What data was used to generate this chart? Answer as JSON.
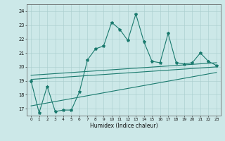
{
  "xlabel": "Humidex (Indice chaleur)",
  "background_color": "#cce8e8",
  "line_color": "#1a7a6e",
  "xlim": [
    -0.5,
    23.5
  ],
  "ylim": [
    16.5,
    24.5
  ],
  "yticks": [
    17,
    18,
    19,
    20,
    21,
    22,
    23,
    24
  ],
  "xticks": [
    0,
    1,
    2,
    3,
    4,
    5,
    6,
    7,
    8,
    9,
    10,
    11,
    12,
    13,
    14,
    15,
    16,
    17,
    18,
    19,
    20,
    21,
    22,
    23
  ],
  "main_x": [
    0,
    1,
    2,
    3,
    4,
    5,
    6,
    7,
    8,
    9,
    10,
    11,
    12,
    13,
    14,
    15,
    16,
    17,
    18,
    19,
    20,
    21,
    22,
    23
  ],
  "main_y": [
    19.0,
    16.7,
    18.6,
    16.8,
    16.9,
    16.9,
    18.2,
    20.5,
    21.3,
    21.5,
    23.2,
    22.7,
    21.9,
    23.8,
    21.8,
    20.4,
    20.3,
    22.4,
    20.3,
    20.2,
    20.3,
    21.0,
    20.4,
    20.1
  ],
  "line1_x": [
    0,
    23
  ],
  "line1_y": [
    19.1,
    20.0
  ],
  "line2_x": [
    0,
    23
  ],
  "line2_y": [
    19.4,
    20.3
  ],
  "line3_x": [
    0,
    23
  ],
  "line3_y": [
    17.2,
    19.6
  ]
}
